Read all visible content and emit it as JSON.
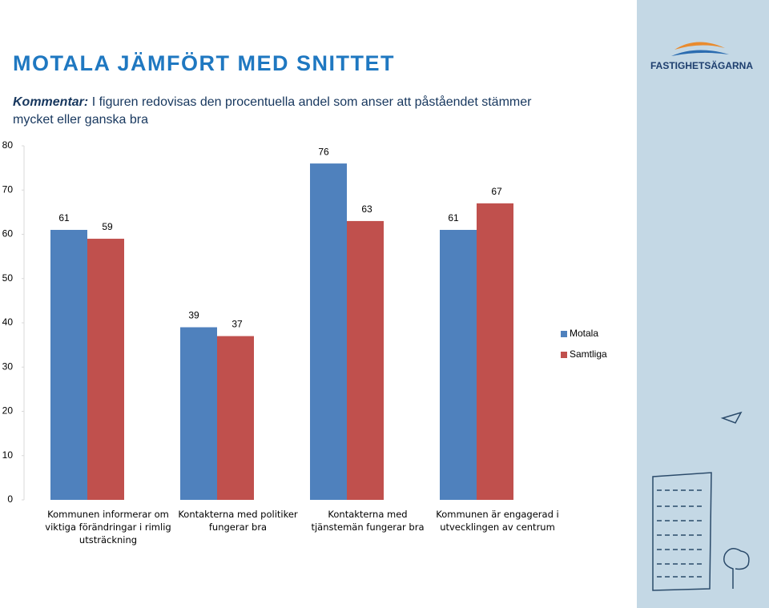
{
  "header": {
    "title": "MOTALA JÄMFÖRT MED SNITTET",
    "comment_label": "Kommentar:",
    "comment": "I figuren redovisas den procentuella andel som anser att påståendet stämmer mycket eller ganska bra"
  },
  "logo": {
    "text": "FASTIGHETSÄGARNA"
  },
  "chart_data": {
    "type": "bar",
    "categories": [
      "Kommunen informerar om viktiga förändringar i rimlig utsträckning",
      "Kontakterna med politiker fungerar bra",
      "Kontakterna med tjänstemän fungerar bra",
      "Kommunen är engagerad i utvecklingen av centrum"
    ],
    "series": [
      {
        "name": "Motala",
        "color": "#4f81bd",
        "values": [
          61,
          39,
          76,
          61
        ]
      },
      {
        "name": "Samtliga",
        "color": "#c0504d",
        "values": [
          59,
          37,
          63,
          67
        ]
      }
    ],
    "ylim": [
      0,
      80
    ],
    "yticks": [
      0,
      10,
      20,
      30,
      40,
      50,
      60,
      70,
      80
    ],
    "legend": "right"
  }
}
